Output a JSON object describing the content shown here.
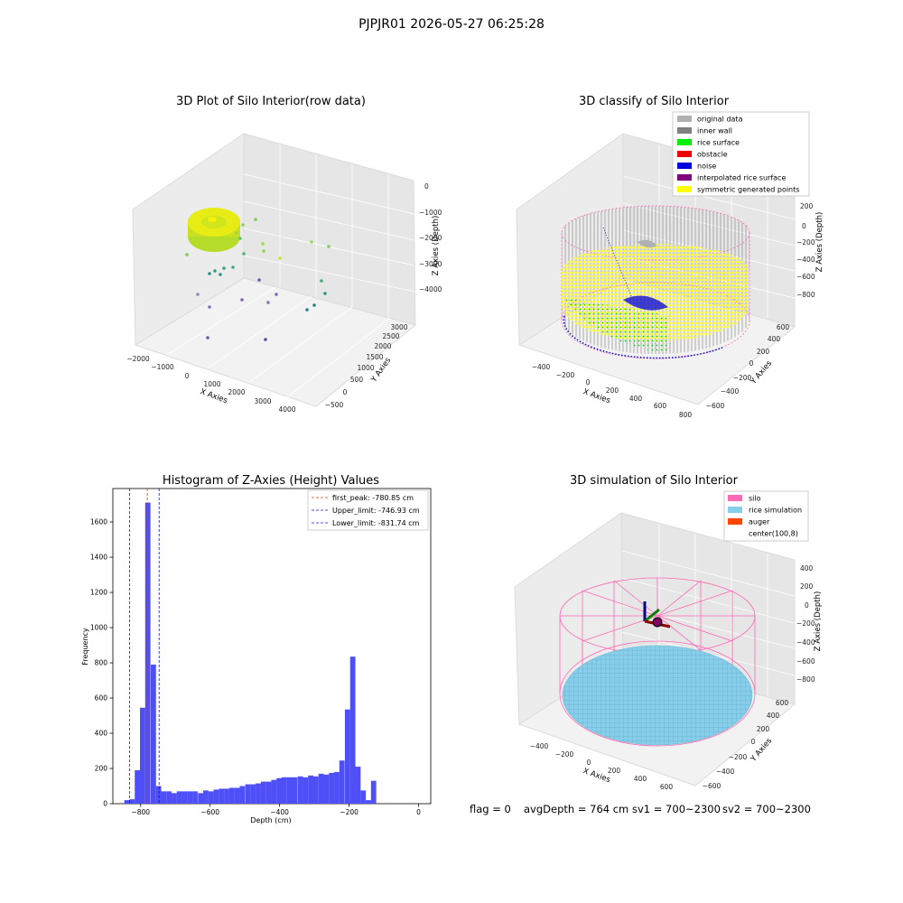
{
  "figure": {
    "suptitle": "PJPJR01 2026-05-27 06:25:28",
    "status": {
      "flag": "flag = 0",
      "avg_depth": "avgDepth = 764 cm",
      "sv1": "sv1 = 700~2300",
      "sv2": "sv2 = 700~2300"
    }
  },
  "colors": {
    "hist_bar": "#4f4ff7",
    "peak_line": "#e8301e",
    "limit_line": "#1212c8",
    "silo": "#ff69b4",
    "rice_sim": "#87ceeb",
    "auger": "#ff4500",
    "original": "#b0b0b0",
    "inner_wall": "#808080",
    "rice_surface": "#00ee00",
    "obstacle": "#ee0000",
    "noise": "#0000dd",
    "interp_surface": "#800080",
    "symmetric": "#ffff00"
  },
  "chart_data": [
    {
      "type": "scatter",
      "title": "3D Plot of Silo Interior(row data)",
      "xlabel": "X Axies",
      "ylabel": "Y Axies",
      "zlabel": "Z Axies (Depth)",
      "x_ticks": [
        "−2000",
        "−1000",
        "0",
        "1000",
        "2000",
        "3000",
        "4000"
      ],
      "y_ticks": [
        "−500",
        "0",
        "500",
        "1000",
        "1500",
        "2000",
        "2500",
        "3000"
      ],
      "z_ticks": [
        "0",
        "−1000",
        "−2000",
        "−3000",
        "−4000"
      ],
      "xlim": [
        -2000,
        4000
      ],
      "ylim": [
        -500,
        3000
      ],
      "zlim": [
        -4500,
        0
      ]
    },
    {
      "type": "scatter",
      "title": "3D classify of Silo Interior",
      "xlabel": "X Axies",
      "ylabel": "Y Axies",
      "zlabel": "Z Axies (Depth)",
      "x_ticks": [
        "−400",
        "−200",
        "0",
        "200",
        "400",
        "600",
        "800"
      ],
      "y_ticks": [
        "−600",
        "−400",
        "−200",
        "0",
        "200",
        "400",
        "600"
      ],
      "z_ticks": [
        "200",
        "0",
        "−200",
        "−400",
        "−600",
        "−800"
      ],
      "legend": [
        {
          "label": "original data",
          "color": "#b0b0b0"
        },
        {
          "label": "inner wall",
          "color": "#808080"
        },
        {
          "label": "rice surface",
          "color": "#00ee00"
        },
        {
          "label": "obstacle",
          "color": "#ee0000"
        },
        {
          "label": "noise",
          "color": "#0000dd"
        },
        {
          "label": "interpolated rice surface",
          "color": "#800080"
        },
        {
          "label": "symmetric generated points",
          "color": "#ffff00"
        }
      ],
      "legend_position": "top-right"
    },
    {
      "type": "bar",
      "title": "Histogram of Z-Axies (Height) Values",
      "xlabel": "Depth (cm)",
      "ylabel": "Frequency",
      "xlim": [
        -880,
        35
      ],
      "ylim": [
        0,
        1790
      ],
      "x_ticks": [
        -800,
        -600,
        -400,
        -200,
        0
      ],
      "y_ticks": [
        0,
        200,
        400,
        600,
        800,
        1000,
        1200,
        1400,
        1600
      ],
      "bin_width": 15.1,
      "bin_starts": [
        -847,
        -832,
        -817,
        -802,
        -787,
        -771,
        -756,
        -741,
        -726,
        -711,
        -696,
        -681,
        -666,
        -651,
        -635,
        -620,
        -605,
        -590,
        -575,
        -560,
        -545,
        -530,
        -515,
        -499,
        -484,
        -469,
        -454,
        -439,
        -424,
        -409,
        -394,
        -379,
        -364,
        -348,
        -333,
        -318,
        -303,
        -288,
        -273,
        -258,
        -243,
        -228,
        -212,
        -197,
        -182,
        -167,
        -152,
        -137,
        -122,
        -107,
        -92,
        -76,
        -61,
        -46,
        -31,
        -16
      ],
      "values": [
        20,
        25,
        190,
        545,
        1710,
        790,
        100,
        70,
        70,
        60,
        70,
        70,
        70,
        70,
        60,
        75,
        70,
        80,
        85,
        85,
        90,
        90,
        100,
        110,
        110,
        115,
        125,
        125,
        135,
        145,
        150,
        150,
        150,
        155,
        150,
        160,
        155,
        170,
        165,
        175,
        180,
        245,
        535,
        835,
        210,
        75,
        20,
        130,
        0,
        0,
        0,
        0,
        0,
        0,
        0,
        0
      ],
      "lines": [
        {
          "label": "first_peak: -780.85 cm",
          "x": -780.85,
          "style": "dashed",
          "color": "#e8301e"
        },
        {
          "label": "Upper_limit: -746.93 cm",
          "x": -746.93,
          "style": "dashed",
          "color": "#1212c8"
        },
        {
          "label": "Lower_limit: -831.74 cm",
          "x": -831.74,
          "style": "dashed",
          "color": "#1212c8"
        }
      ],
      "legend_position": "top-right"
    },
    {
      "type": "scatter",
      "title": "3D simulation of Silo Interior",
      "xlabel": "X Axies",
      "ylabel": "Y Axies",
      "zlabel": "Z Axies (Depth)",
      "x_ticks": [
        "−400",
        "−200",
        "0",
        "200",
        "400",
        "600"
      ],
      "y_ticks": [
        "−600",
        "−400",
        "−200",
        "0",
        "200",
        "400",
        "600"
      ],
      "z_ticks": [
        "400",
        "200",
        "0",
        "−200",
        "−400",
        "−600",
        "−800"
      ],
      "legend": [
        {
          "label": "silo",
          "color": "#ff69b4"
        },
        {
          "label": "rice simulation",
          "color": "#87ceeb"
        },
        {
          "label": "auger",
          "color": "#ff4500"
        },
        {
          "label": "center(100,8)",
          "color": ""
        }
      ],
      "legend_position": "top-right"
    }
  ]
}
